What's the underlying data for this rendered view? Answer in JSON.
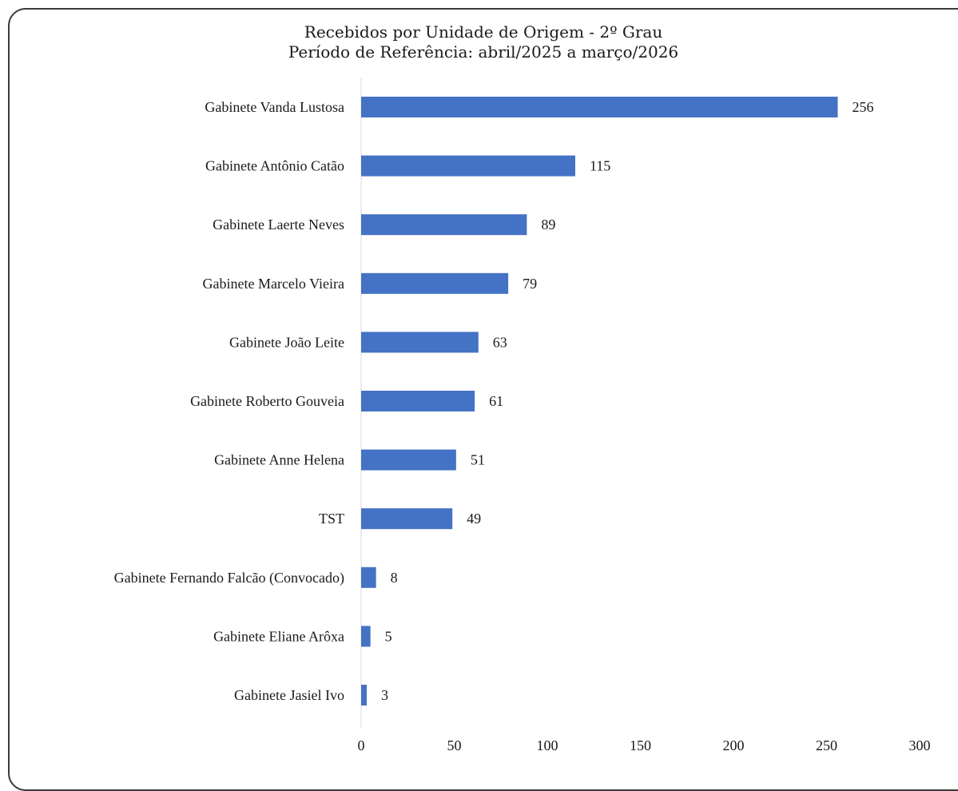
{
  "chart_data": {
    "type": "bar",
    "orientation": "horizontal",
    "title": "Recebidos por Unidade de Origem - 2º Grau",
    "subtitle": "Período de Referência: abril/2025 a março/2026",
    "categories": [
      "Gabinete Vanda Lustosa",
      "Gabinete Antônio Catão",
      "Gabinete Laerte Neves",
      "Gabinete Marcelo Vieira",
      "Gabinete João Leite",
      "Gabinete Roberto Gouveia",
      "Gabinete Anne Helena",
      "TST",
      "Gabinete Fernando Falcão (Convocado)",
      "Gabinete Eliane Arôxa",
      "Gabinete Jasiel Ivo"
    ],
    "values": [
      256,
      115,
      89,
      79,
      63,
      61,
      51,
      49,
      8,
      5,
      3
    ],
    "xlim": [
      0,
      300
    ],
    "xticks": [
      0,
      50,
      100,
      150,
      200,
      250,
      300
    ],
    "xlabel": "",
    "ylabel": "",
    "grid": false,
    "legend": "none",
    "bar_color": "#4472C4",
    "data_labels": true
  }
}
